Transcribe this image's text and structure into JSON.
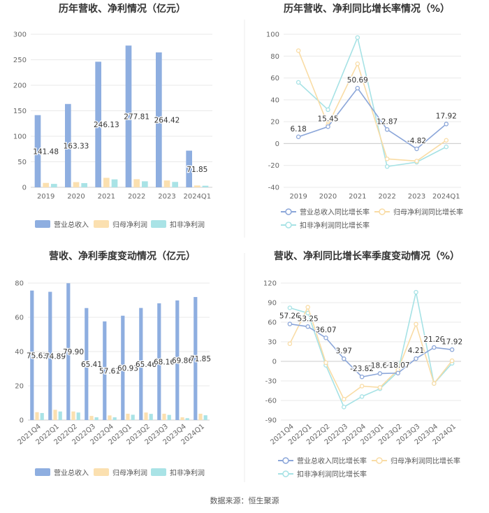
{
  "chart_data": [
    {
      "type": "bar",
      "title": "历年营收、净利情况（亿元）",
      "categories": [
        "2019",
        "2020",
        "2021",
        "2022",
        "2023",
        "2024Q1"
      ],
      "series": [
        {
          "name": "营业总收入",
          "color": "#8eaee0",
          "values": [
            141.48,
            163.33,
            246.13,
            277.81,
            264.42,
            71.85
          ]
        },
        {
          "name": "归母净利润",
          "color": "#fbe0b0",
          "values": [
            8.6,
            10.2,
            18.6,
            15.9,
            13.4,
            3.6
          ]
        },
        {
          "name": "扣非净利润",
          "color": "#a9e3e6",
          "values": [
            6.7,
            8.2,
            15.6,
            11.8,
            10.6,
            3.1
          ]
        }
      ],
      "data_labels": [
        "141.48",
        "163.33",
        "246.13",
        "277.81",
        "264.42",
        "71.85"
      ],
      "ylim": [
        0,
        300
      ],
      "yticks": [
        0,
        50,
        100,
        150,
        200,
        250,
        300
      ]
    },
    {
      "type": "line",
      "title": "历年营收、净利同比增长率情况（%）",
      "categories": [
        "2019",
        "2020",
        "2021",
        "2022",
        "2023",
        "2024Q1"
      ],
      "series": [
        {
          "name": "营业总收入同比增长率",
          "color": "#8ba6d9",
          "values": [
            6.18,
            15.45,
            50.69,
            12.87,
            -4.82,
            17.92
          ]
        },
        {
          "name": "归母净利润同比增长率",
          "color": "#f9dca5",
          "values": [
            85,
            17,
            73,
            -14,
            -16,
            3
          ]
        },
        {
          "name": "扣非净利润同比增长率",
          "color": "#a6e2e5",
          "values": [
            56,
            31,
            97,
            -21,
            -17,
            -3
          ]
        }
      ],
      "data_labels": [
        "6.18",
        "15.45",
        "50.69",
        "12.87",
        "-4.82",
        "17.92"
      ],
      "ylim": [
        -40,
        100
      ],
      "yticks": [
        -40,
        -20,
        0,
        20,
        40,
        60,
        80,
        100
      ]
    },
    {
      "type": "bar",
      "title": "营收、净利季度变动情况（亿元）",
      "categories": [
        "2021Q4",
        "2022Q1",
        "2022Q2",
        "2022Q3",
        "2022Q4",
        "2023Q1",
        "2023Q2",
        "2023Q3",
        "2023Q4",
        "2024Q1"
      ],
      "series": [
        {
          "name": "营业总收入",
          "color": "#8eaee0",
          "values": [
            75.63,
            74.89,
            79.9,
            65.41,
            57.61,
            60.93,
            65.46,
            68.16,
            69.86,
            71.85
          ]
        },
        {
          "name": "归母净利润",
          "color": "#fbe0b0",
          "values": [
            4.6,
            6.0,
            5.0,
            2.4,
            2.7,
            3.7,
            4.4,
            3.7,
            1.6,
            3.7
          ]
        },
        {
          "name": "扣非净利润",
          "color": "#a9e3e6",
          "values": [
            4.1,
            5.0,
            4.4,
            1.6,
            1.6,
            3.1,
            3.6,
            3.0,
            1.1,
            2.8
          ]
        }
      ],
      "data_labels": [
        "75.63",
        "74.89",
        "79.90",
        "65.41",
        "57.61",
        "60.93",
        "65.46",
        "68.16",
        "69.86",
        "71.85"
      ],
      "ylim": [
        0,
        80
      ],
      "yticks": [
        0,
        20,
        40,
        60,
        80
      ]
    },
    {
      "type": "line",
      "title": "营收、净利同比增长率季度变动情况（%）",
      "categories": [
        "2021Q4",
        "2022Q1",
        "2022Q2",
        "2022Q3",
        "2022Q4",
        "2023Q1",
        "2023Q2",
        "2023Q3",
        "2023Q4",
        "2024Q1"
      ],
      "series": [
        {
          "name": "营业总收入同比增长率",
          "color": "#8ba6d9",
          "values": [
            57.26,
            53.25,
            36.07,
            3.97,
            -23.82,
            -18.64,
            -18.07,
            4.21,
            21.26,
            17.92
          ]
        },
        {
          "name": "归母净利润同比增长率",
          "color": "#f9dca5",
          "values": [
            27,
            83,
            -2,
            -58,
            -38,
            -40,
            -13,
            57,
            -34,
            1
          ]
        },
        {
          "name": "扣非净利润同比增长率",
          "color": "#a6e2e5",
          "values": [
            82,
            74,
            -6,
            -70,
            -54,
            -42,
            -16,
            106,
            -34,
            -3
          ]
        }
      ],
      "data_labels": [
        "57.26",
        "53.25",
        "36.07",
        "3.97",
        "-23.82",
        "-18.64",
        "-18.07",
        "4.21",
        "21.26",
        "17.92"
      ],
      "ylim": [
        -90,
        120
      ],
      "yticks": [
        -90,
        -60,
        -30,
        0,
        30,
        60,
        90,
        120
      ]
    }
  ],
  "footer": "数据来源：恒生聚源"
}
